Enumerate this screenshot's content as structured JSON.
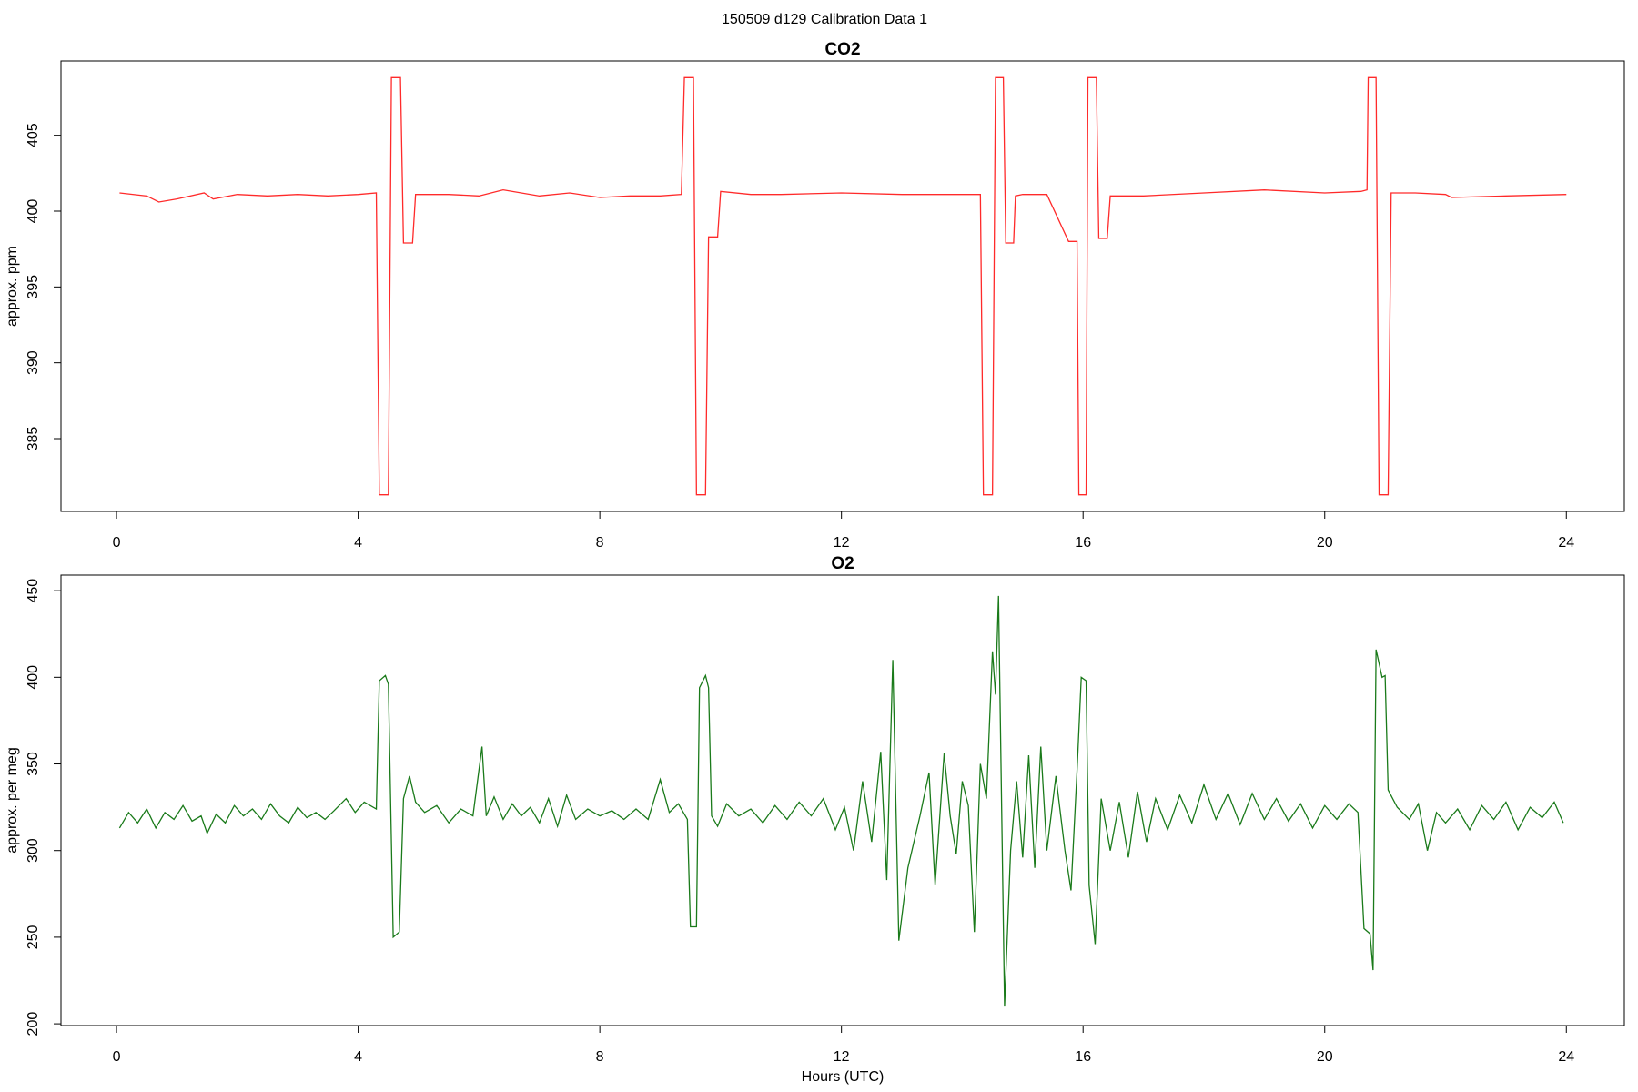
{
  "title": "150509   d129   Calibration Data 1",
  "chart_data": [
    {
      "type": "line",
      "title": "CO2",
      "ylabel": "approx. ppm",
      "xlim": [
        -0.92,
        24.96
      ],
      "xticks": [
        0,
        4,
        8,
        12,
        16,
        20,
        24
      ],
      "ylim": [
        380.2,
        409.9
      ],
      "yticks": [
        385,
        390,
        395,
        400,
        405
      ],
      "x": [
        0.05,
        0.5,
        0.7,
        1.0,
        1.45,
        1.6,
        2.0,
        2.5,
        3.0,
        3.5,
        4.0,
        4.3,
        4.35,
        4.5,
        4.55,
        4.7,
        4.75,
        4.9,
        4.95,
        5.5,
        6.0,
        6.4,
        7.0,
        7.5,
        8.0,
        8.5,
        9.0,
        9.35,
        9.4,
        9.55,
        9.6,
        9.75,
        9.8,
        9.95,
        10.0,
        10.5,
        11.0,
        12.0,
        13.0,
        14.0,
        14.3,
        14.35,
        14.5,
        14.55,
        14.68,
        14.72,
        14.85,
        14.88,
        15.0,
        15.4,
        15.76,
        15.9,
        15.93,
        16.05,
        16.08,
        16.22,
        16.26,
        16.4,
        16.45,
        17.0,
        18.0,
        19.0,
        20.0,
        20.6,
        20.7,
        20.72,
        20.85,
        20.9,
        21.05,
        21.1,
        21.5,
        22.0,
        22.1,
        23.0,
        24.0
      ],
      "series": [
        {
          "color": "#ff2a2a",
          "values": [
            401.2,
            401.0,
            400.6,
            400.8,
            401.2,
            400.8,
            401.1,
            401.0,
            401.1,
            401.0,
            401.1,
            401.2,
            381.3,
            381.3,
            408.8,
            408.8,
            397.9,
            397.9,
            401.1,
            401.1,
            401.0,
            401.4,
            401.0,
            401.2,
            400.9,
            401.0,
            401.0,
            401.1,
            408.8,
            408.8,
            381.3,
            381.3,
            398.3,
            398.3,
            401.3,
            401.1,
            401.1,
            401.2,
            401.1,
            401.1,
            401.1,
            381.3,
            381.3,
            408.8,
            408.8,
            397.9,
            397.9,
            401.0,
            401.1,
            401.1,
            398.0,
            398.0,
            381.3,
            381.3,
            408.8,
            408.8,
            398.2,
            398.2,
            401.0,
            401.0,
            401.2,
            401.4,
            401.2,
            401.3,
            401.4,
            408.8,
            408.8,
            381.3,
            381.3,
            401.2,
            401.2,
            401.1,
            400.9,
            401.0,
            401.1
          ]
        }
      ]
    },
    {
      "type": "line",
      "title": "O2",
      "ylabel": "approx. per meg",
      "xlabel": "Hours (UTC)",
      "xlim": [
        -0.92,
        24.96
      ],
      "xticks": [
        0,
        4,
        8,
        12,
        16,
        20,
        24
      ],
      "ylim": [
        199,
        459
      ],
      "yticks": [
        200,
        250,
        300,
        350,
        400,
        450
      ],
      "x": [
        0.05,
        0.2,
        0.35,
        0.5,
        0.65,
        0.8,
        0.95,
        1.1,
        1.25,
        1.4,
        1.5,
        1.65,
        1.8,
        1.95,
        2.1,
        2.25,
        2.4,
        2.55,
        2.7,
        2.85,
        3.0,
        3.15,
        3.3,
        3.45,
        3.6,
        3.8,
        3.95,
        4.1,
        4.3,
        4.35,
        4.45,
        4.5,
        4.58,
        4.68,
        4.75,
        4.85,
        4.95,
        5.1,
        5.3,
        5.5,
        5.7,
        5.9,
        6.05,
        6.12,
        6.25,
        6.4,
        6.55,
        6.7,
        6.85,
        7.0,
        7.15,
        7.3,
        7.45,
        7.6,
        7.8,
        8.0,
        8.2,
        8.4,
        8.6,
        8.8,
        9.0,
        9.15,
        9.3,
        9.45,
        9.5,
        9.6,
        9.65,
        9.75,
        9.8,
        9.85,
        9.95,
        10.1,
        10.3,
        10.5,
        10.7,
        10.9,
        11.1,
        11.3,
        11.5,
        11.7,
        11.9,
        12.05,
        12.2,
        12.35,
        12.5,
        12.65,
        12.75,
        12.85,
        12.95,
        13.1,
        13.3,
        13.45,
        13.55,
        13.7,
        13.8,
        13.9,
        14.0,
        14.1,
        14.2,
        14.3,
        14.4,
        14.5,
        14.55,
        14.6,
        14.7,
        14.8,
        14.9,
        15.0,
        15.1,
        15.2,
        15.3,
        15.4,
        15.55,
        15.7,
        15.8,
        15.9,
        15.97,
        16.05,
        16.1,
        16.2,
        16.3,
        16.45,
        16.6,
        16.75,
        16.9,
        17.05,
        17.2,
        17.4,
        17.6,
        17.8,
        18.0,
        18.2,
        18.4,
        18.6,
        18.8,
        19.0,
        19.2,
        19.4,
        19.6,
        19.8,
        20.0,
        20.2,
        20.4,
        20.55,
        20.65,
        20.75,
        20.8,
        20.85,
        20.95,
        21.0,
        21.05,
        21.2,
        21.4,
        21.55,
        21.7,
        21.85,
        22.0,
        22.2,
        22.4,
        22.6,
        22.8,
        23.0,
        23.2,
        23.4,
        23.6,
        23.8,
        23.95
      ],
      "series": [
        {
          "color": "#1a7a1a",
          "values": [
            313,
            322,
            316,
            324,
            313,
            322,
            318,
            326,
            317,
            320,
            310,
            321,
            316,
            326,
            320,
            324,
            318,
            327,
            320,
            316,
            325,
            319,
            322,
            318,
            323,
            330,
            322,
            328,
            324,
            398,
            401,
            396,
            250,
            253,
            330,
            343,
            328,
            322,
            326,
            316,
            324,
            320,
            360,
            320,
            331,
            318,
            327,
            320,
            325,
            316,
            330,
            314,
            332,
            318,
            324,
            320,
            323,
            318,
            324,
            318,
            341,
            322,
            327,
            318,
            256,
            256,
            394,
            401,
            394,
            320,
            314,
            327,
            320,
            324,
            316,
            326,
            318,
            328,
            320,
            330,
            312,
            325,
            300,
            340,
            305,
            357,
            283,
            410,
            248,
            290,
            320,
            345,
            280,
            356,
            320,
            298,
            340,
            326,
            253,
            350,
            330,
            415,
            390,
            447,
            210,
            300,
            340,
            296,
            355,
            290,
            360,
            300,
            343,
            300,
            277,
            346,
            400,
            398,
            280,
            246,
            330,
            300,
            328,
            296,
            334,
            305,
            330,
            312,
            332,
            316,
            338,
            318,
            333,
            315,
            333,
            318,
            330,
            317,
            327,
            313,
            326,
            318,
            327,
            322,
            255,
            252,
            231,
            416,
            400,
            401,
            335,
            325,
            318,
            327,
            300,
            322,
            316,
            324,
            312,
            326,
            318,
            328,
            312,
            325,
            319,
            328,
            316
          ]
        }
      ]
    }
  ]
}
